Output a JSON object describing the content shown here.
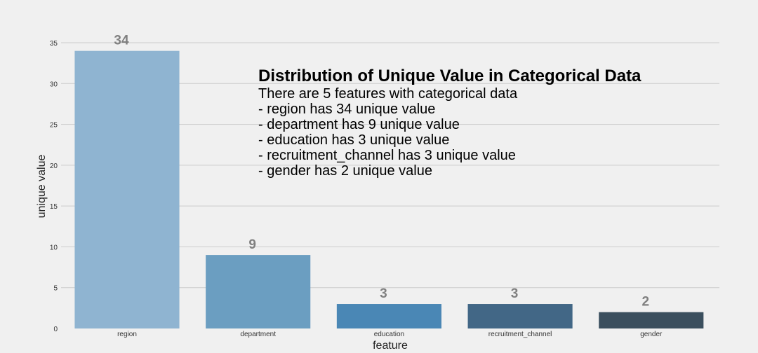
{
  "chart_data": {
    "type": "bar",
    "categories": [
      "region",
      "department",
      "education",
      "recruitment_channel",
      "gender"
    ],
    "values": [
      34,
      9,
      3,
      3,
      2
    ],
    "value_labels": [
      "34",
      "9",
      "3",
      "3",
      "2"
    ],
    "xlabel": "feature",
    "ylabel": "unique value",
    "ylim": [
      0,
      35
    ],
    "yticks": [
      0,
      5,
      10,
      15,
      20,
      25,
      30,
      35
    ],
    "grid": true,
    "bar_colors": [
      "#8fb4d1",
      "#6b9ec1",
      "#4a87b5",
      "#426786",
      "#3b4f5e"
    ],
    "background": "#f0f0f0",
    "annotation": {
      "title": "Distribution of Unique Value in Categorical Data",
      "lines": [
        "There are 5 features with categorical data",
        "- region has 34 unique value",
        "- department has 9 unique value",
        "- education has 3 unique value",
        "- recruitment_channel has 3 unique value",
        "- gender has 2 unique value"
      ]
    }
  }
}
